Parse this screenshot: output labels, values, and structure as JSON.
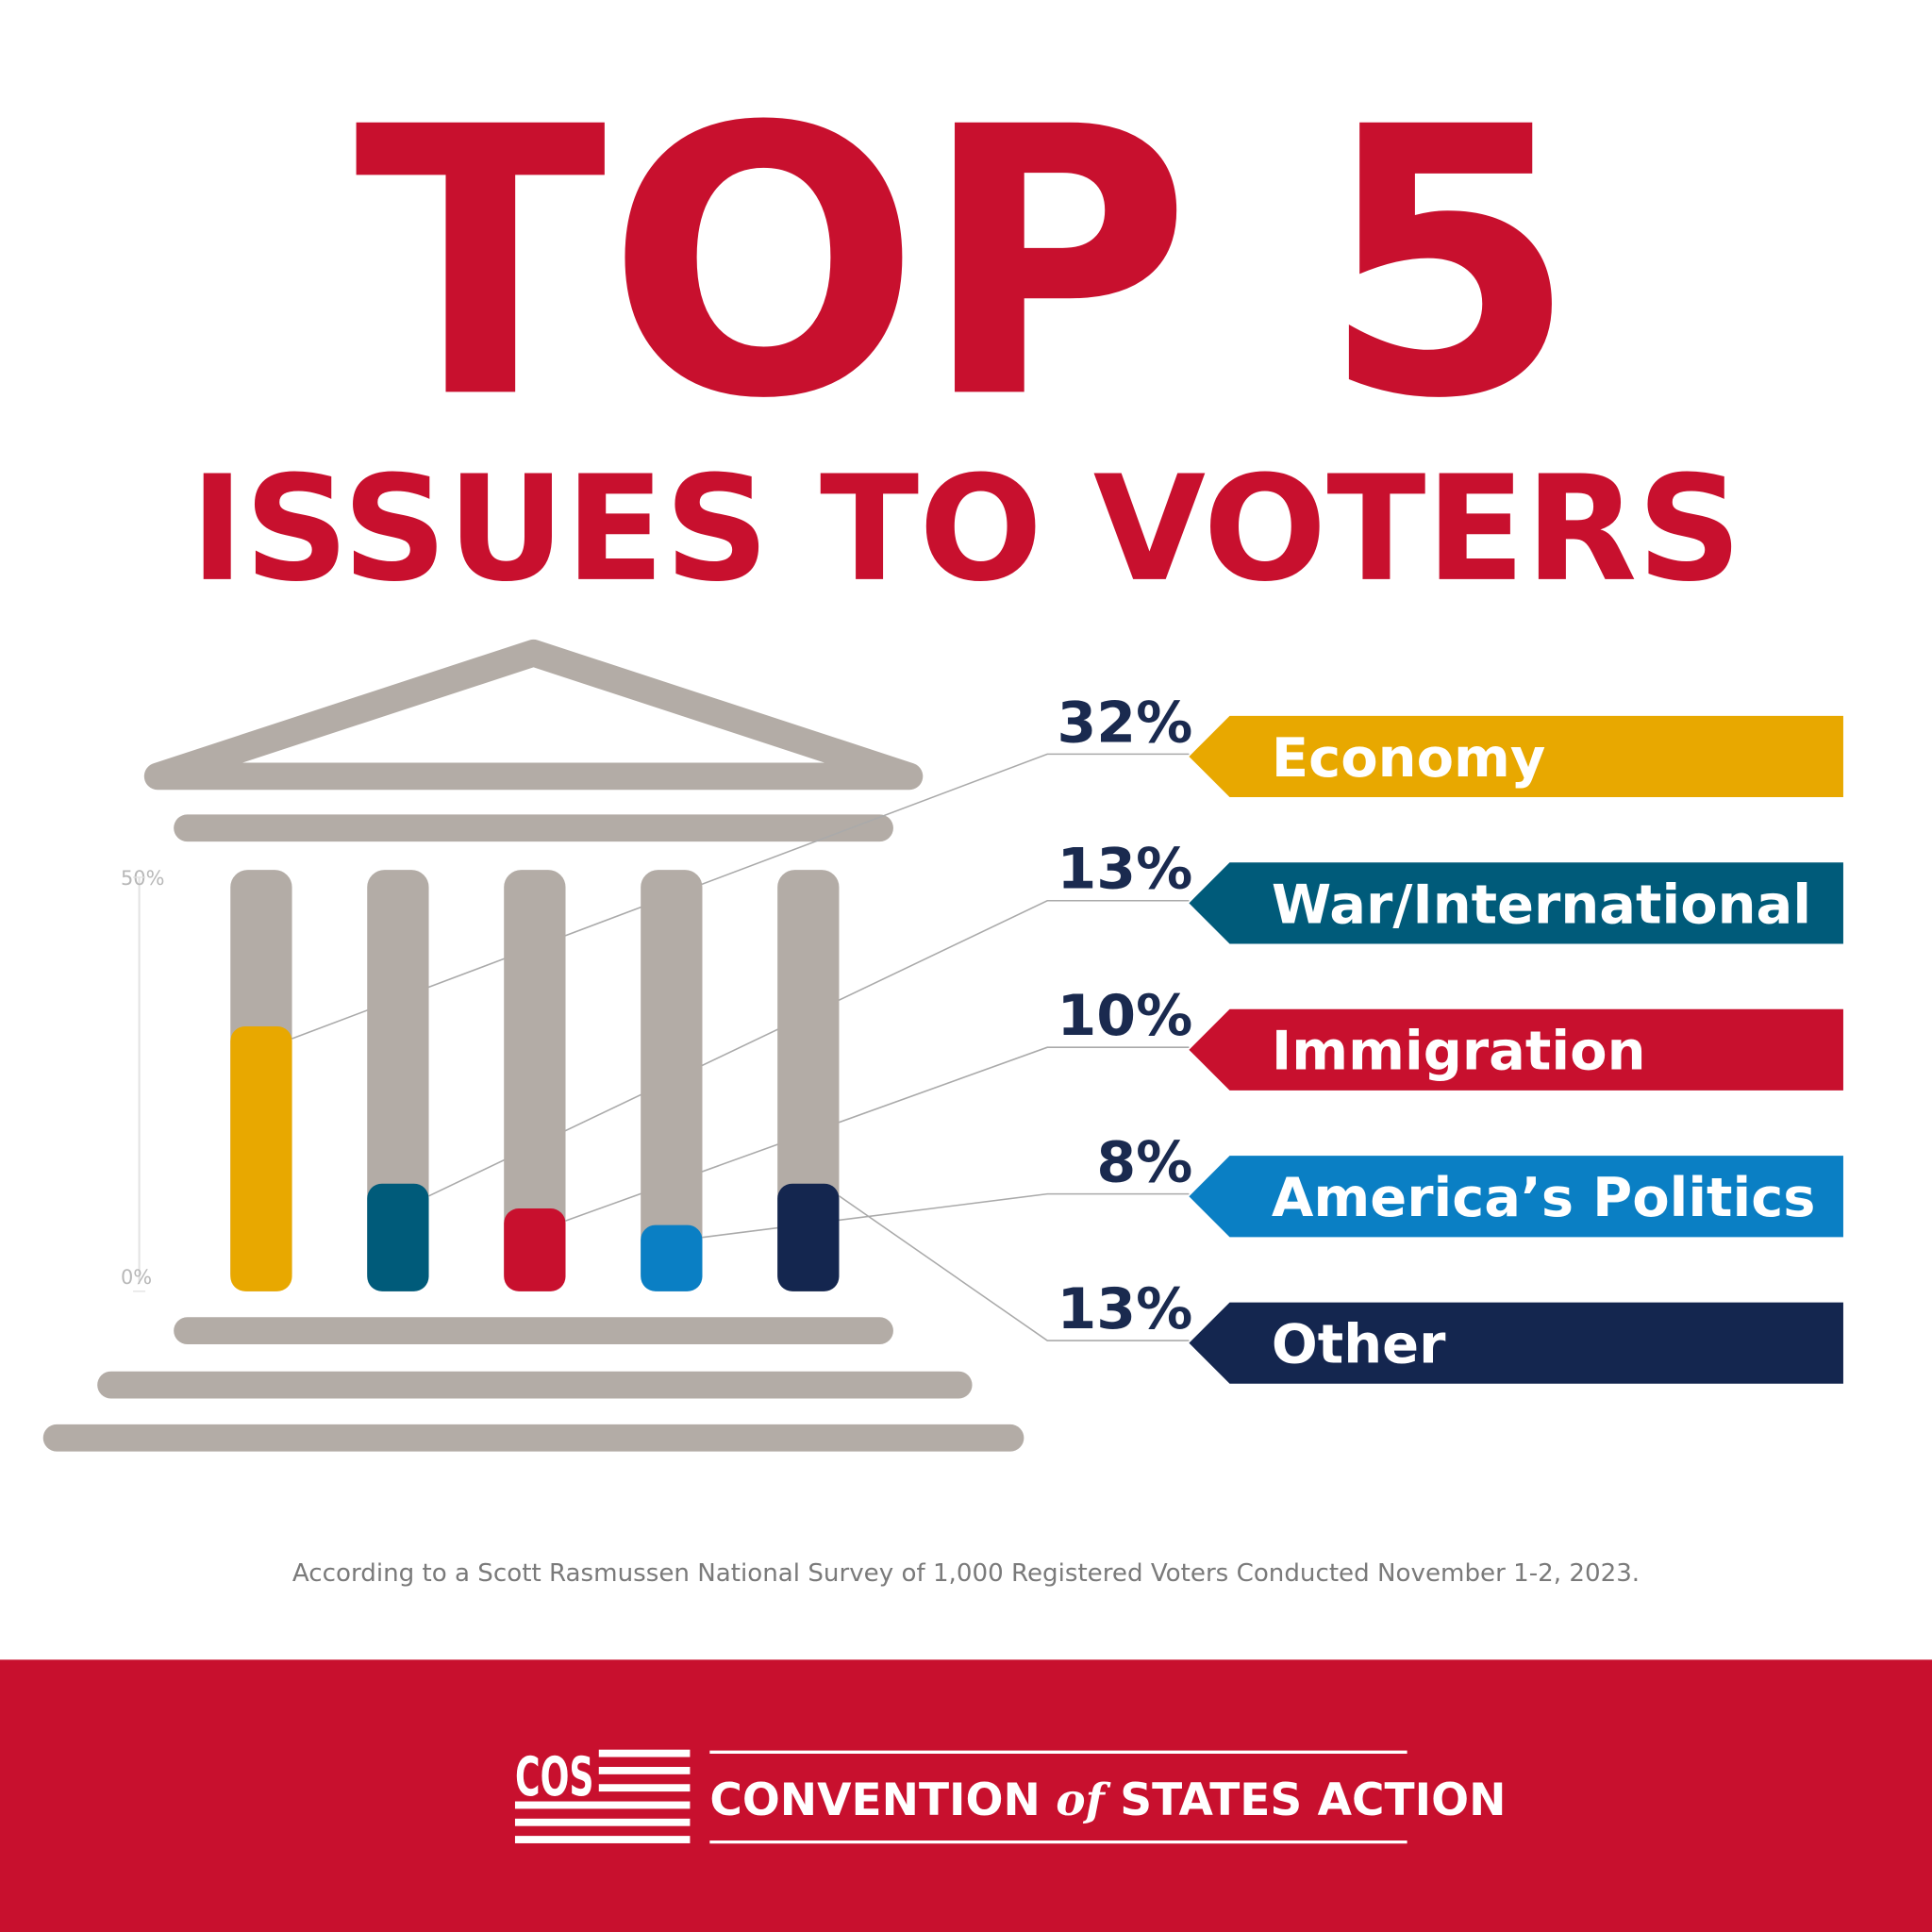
{
  "chart_data": {
    "type": "bar",
    "title": "TOP 5",
    "subtitle": "ISSUES TO VOTERS",
    "categories": [
      "Economy",
      "War/International",
      "Immigration",
      "America’s Politics",
      "Other"
    ],
    "values": [
      32,
      13,
      10,
      8,
      13
    ],
    "value_labels": [
      "32%",
      "13%",
      "10%",
      "8%",
      "13%"
    ],
    "colors": [
      "#e8a800",
      "#005b7a",
      "#c8102e",
      "#0a7fc4",
      "#14264f"
    ],
    "ylim": [
      0,
      50
    ],
    "yticks": [
      {
        "value": 0,
        "label": "0%"
      },
      {
        "value": 50,
        "label": "50%"
      }
    ],
    "note": "According to a Scott Rasmussen National Survey of 1,000 Registered Voters Conducted November 1-2, 2023.",
    "footer": {
      "logo": "COS",
      "name_1": "CONVENTION",
      "name_2": "of",
      "name_3": "STATES ACTION"
    }
  }
}
